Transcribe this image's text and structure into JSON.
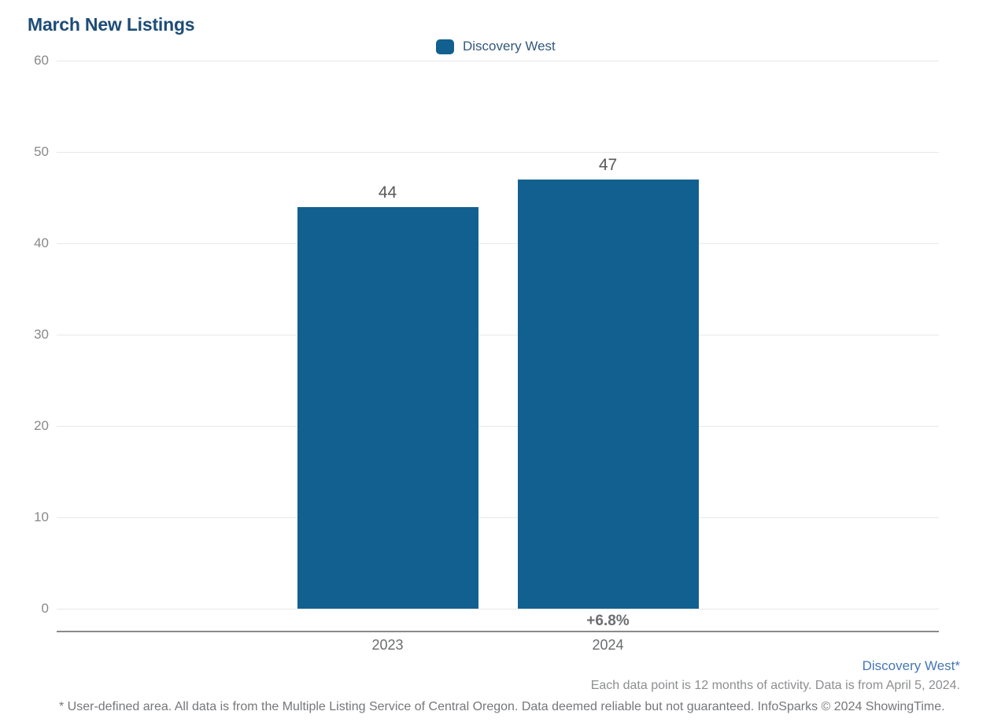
{
  "page": {
    "title": "March New Listings"
  },
  "legend": {
    "label": "Discovery West",
    "marker_color": "#12608f"
  },
  "chart_data": {
    "type": "bar",
    "title": "March New Listings",
    "categories": [
      "2023",
      "2024"
    ],
    "series": [
      {
        "name": "Discovery West",
        "values": [
          44,
          47
        ],
        "color": "#12608f"
      }
    ],
    "value_labels": [
      "44",
      "47"
    ],
    "change_labels": [
      "",
      "+6.8%"
    ],
    "xlabel": "",
    "ylabel": "",
    "ylim": [
      0,
      60
    ],
    "yticks": [
      0,
      10,
      20,
      30,
      40,
      50,
      60
    ],
    "grid": true,
    "legend_position": "top-center"
  },
  "footer": {
    "area_label": "Discovery West*",
    "data_note": "Each data point is 12 months of activity. Data is from April 5, 2024.",
    "disclaimer": "* User-defined area. All data is from the Multiple Listing Service of Central Oregon. Data deemed reliable but not guaranteed. InfoSparks © 2024 ShowingTime."
  },
  "colors": {
    "title": "#1d4c77",
    "bar": "#12608f",
    "gridline": "#e8e8e8",
    "axis_line": "#8a8a8a",
    "ytick_label": "#898989",
    "xtick_label": "#6b6c6e",
    "value_label": "#58595b",
    "change_label": "#6d6e70",
    "legend_text": "#33587d",
    "area_label": "#4677b4",
    "note_text": "#8d8e90",
    "disclaimer_text": "#76777a"
  }
}
